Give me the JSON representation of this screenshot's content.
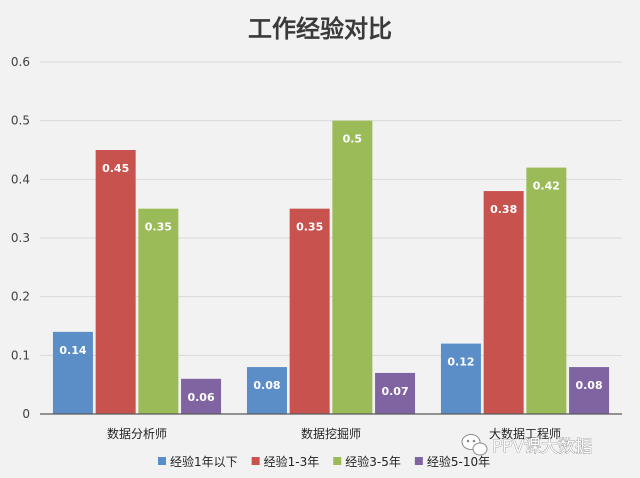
{
  "chart_data": {
    "type": "bar",
    "title": "工作经验对比",
    "categories": [
      "数据分析师",
      "数据挖掘师",
      "大数据工程师"
    ],
    "series": [
      {
        "name": "经验1年以下",
        "values": [
          0.14,
          0.08,
          0.12
        ],
        "color": "#5b8ec7"
      },
      {
        "name": "经验1-3年",
        "values": [
          0.45,
          0.35,
          0.38
        ],
        "color": "#c8524e"
      },
      {
        "name": "经验3-5年",
        "values": [
          0.35,
          0.5,
          0.42
        ],
        "color": "#9bbb59"
      },
      {
        "name": "经验5-10年",
        "values": [
          0.06,
          0.07,
          0.08
        ],
        "color": "#8064a2"
      }
    ],
    "yticks": [
      "0",
      "0.1",
      "0.2",
      "0.3",
      "0.4",
      "0.5",
      "0.6"
    ],
    "ylim": [
      0,
      0.6
    ],
    "grid": true,
    "legend_position": "bottom",
    "xlabel": "",
    "ylabel": ""
  },
  "watermark": {
    "text": "PPV课大数据",
    "icon": "wechat-icon"
  }
}
